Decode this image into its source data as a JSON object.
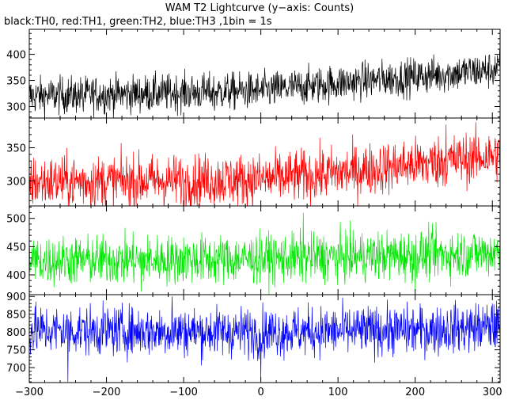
{
  "chart_data": {
    "type": "line",
    "title": "WAM T2 Lightcurve (y−axis: Counts)",
    "subtitle": "black:TH0, red:TH1, green:TH2, blue:TH3 ,1bin = 1s",
    "xlim": [
      -300,
      310
    ],
    "x_ticks": [
      -300,
      -200,
      -100,
      0,
      100,
      200,
      300
    ],
    "x_tick_labels": [
      "−300",
      "−200",
      "−100",
      "0",
      "100",
      "200",
      "300"
    ],
    "series": [
      {
        "color": "#000000",
        "ylim": [
          278,
          448
        ],
        "y_ticks": [
          300,
          350,
          400
        ],
        "trend": {
          "x": [
            -300,
            0,
            100,
            300,
            310
          ],
          "y": [
            320,
            330,
            345,
            370,
            375
          ]
        },
        "noise": 18,
        "spikes": [
          [
            -230,
            290
          ],
          [
            -60,
            292
          ]
        ]
      },
      {
        "color": "#ff0000",
        "ylim": [
          262,
          395
        ],
        "y_ticks": [
          300,
          350
        ],
        "trend": {
          "x": [
            -300,
            0,
            100,
            300,
            310
          ],
          "y": [
            298,
            302,
            312,
            338,
            340
          ]
        },
        "noise": 20,
        "spikes": [
          [
            -100,
            265
          ],
          [
            240,
            385
          ]
        ]
      },
      {
        "color": "#00e600",
        "ylim": [
          365,
          522
        ],
        "y_ticks": [
          400,
          450,
          500
        ],
        "trend": {
          "x": [
            -300,
            0,
            200,
            310
          ],
          "y": [
            425,
            428,
            435,
            440
          ]
        },
        "noise": 22,
        "spikes": [
          [
            -155,
            370
          ],
          [
            55,
            510
          ],
          [
            200,
            372
          ]
        ]
      },
      {
        "color": "#0000ff",
        "ylim": [
          658,
          905
        ],
        "y_ticks": [
          700,
          750,
          800,
          850,
          900
        ],
        "trend": {
          "x": [
            -300,
            0,
            200,
            310
          ],
          "y": [
            805,
            800,
            805,
            815
          ]
        },
        "noise": 35,
        "spikes": [
          [
            -250,
            660
          ],
          [
            -115,
            900
          ],
          [
            0,
            665
          ],
          [
            300,
            880
          ]
        ]
      }
    ]
  }
}
